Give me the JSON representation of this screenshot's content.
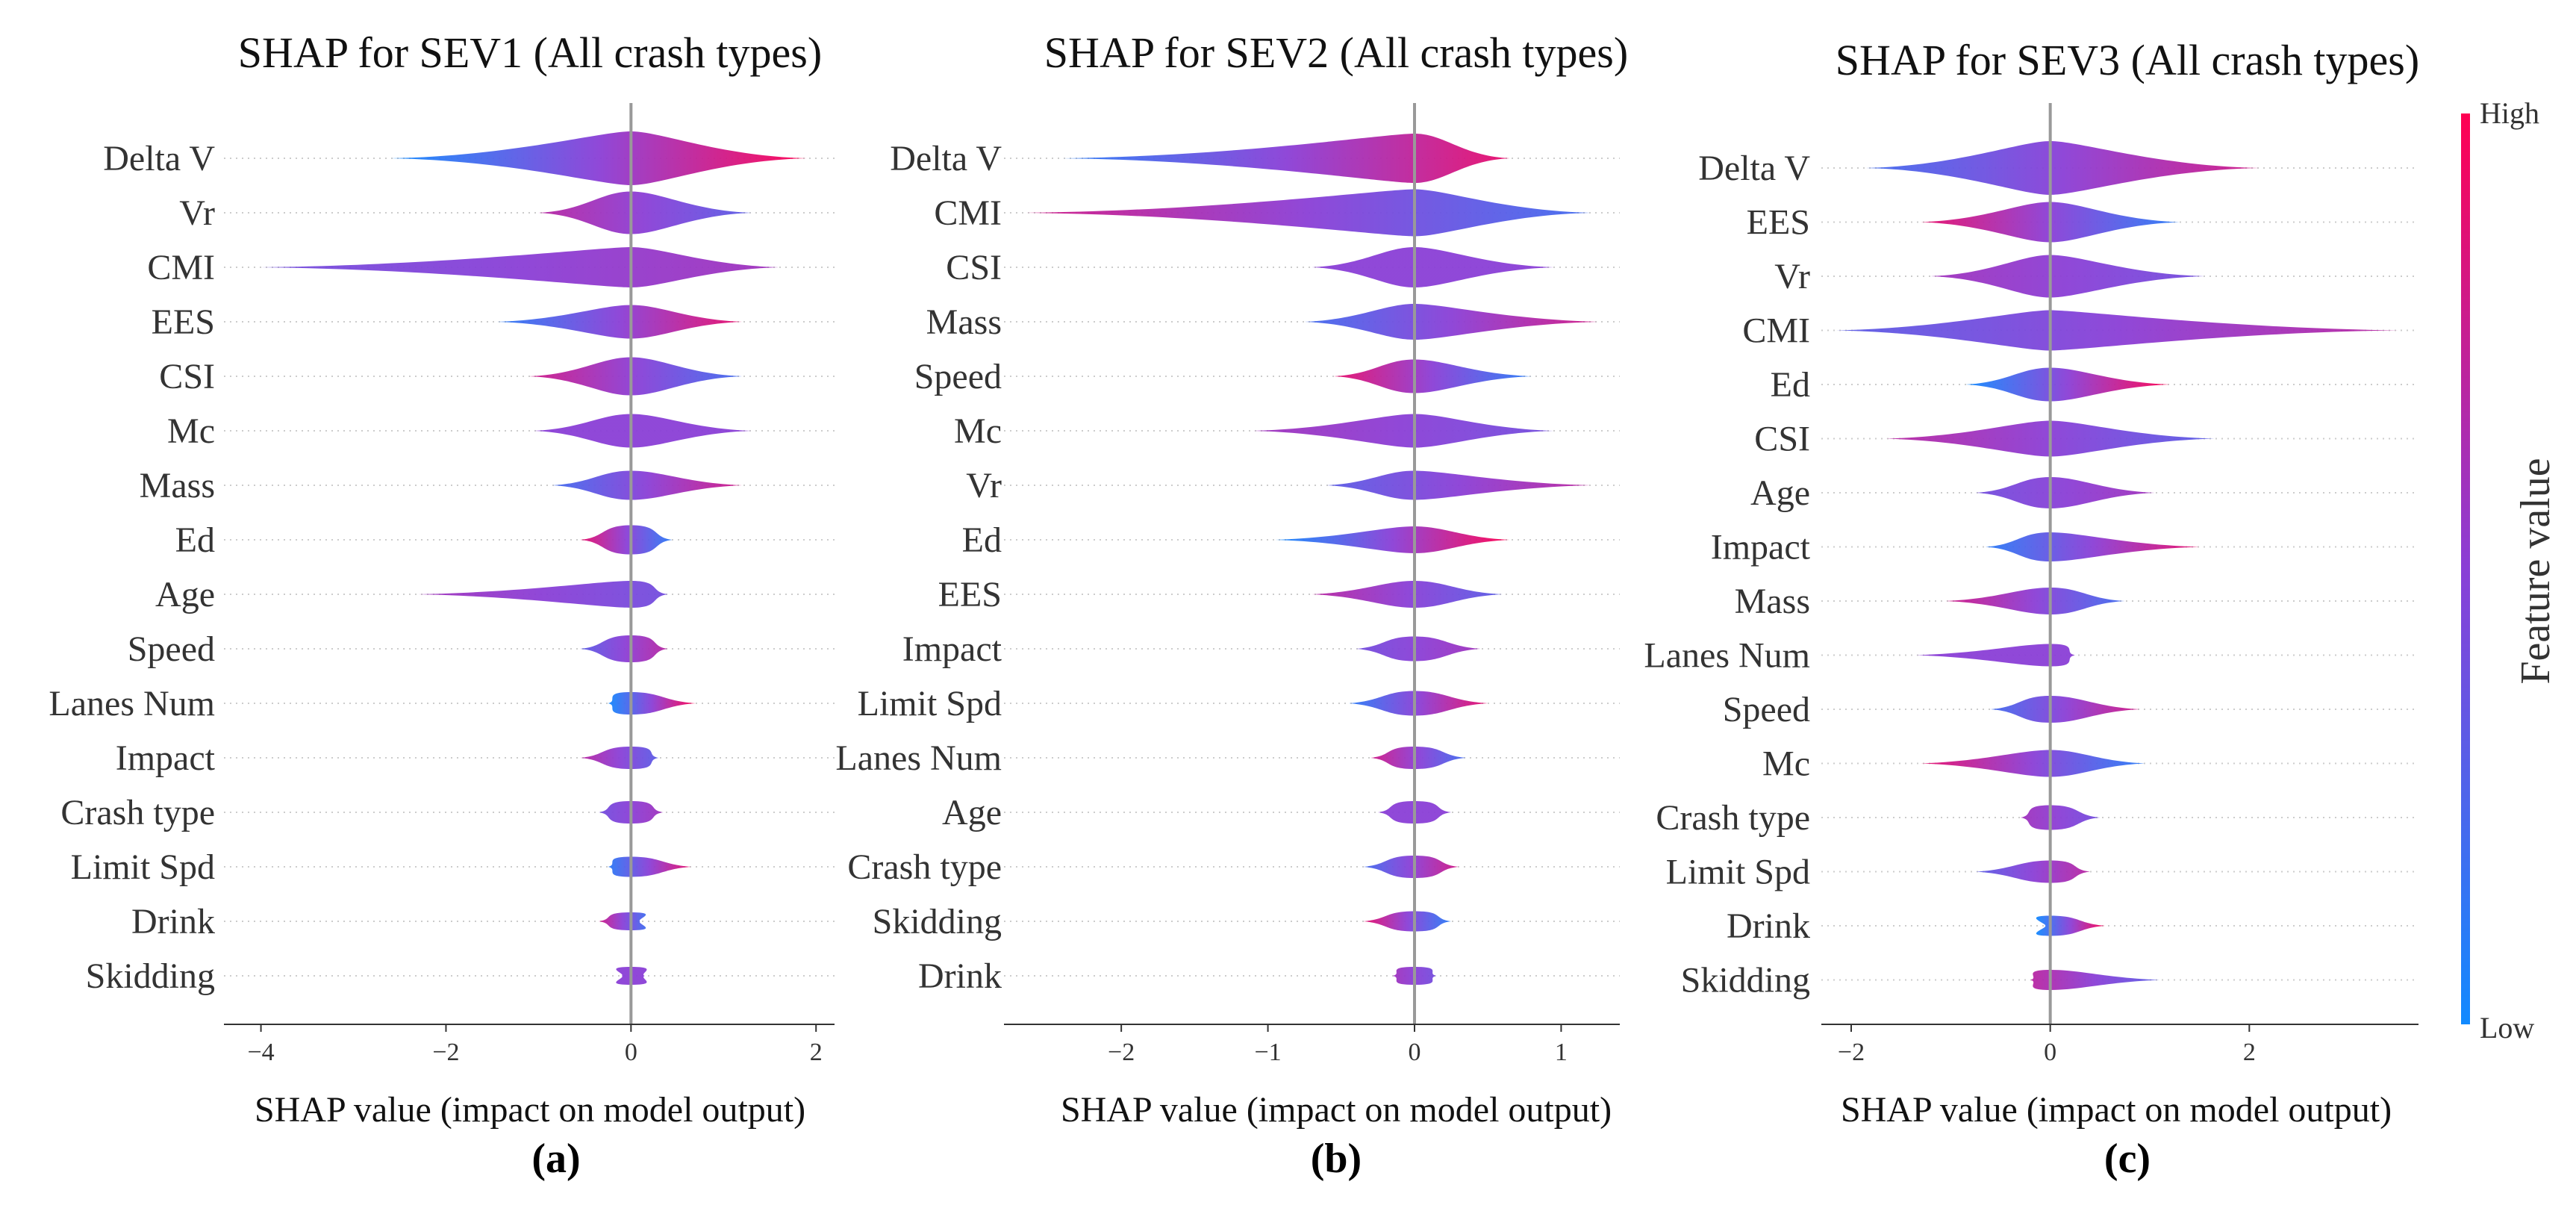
{
  "colorbar": {
    "label": "Feature value",
    "high": "High",
    "low": "Low",
    "high_color": "#ff0052",
    "mid_color": "#8a3fd6",
    "low_color": "#118aff"
  },
  "chart_data": [
    {
      "type": "scatter",
      "panel_label": "(a)",
      "title": "SHAP for SEV1 (All crash types)",
      "xlabel": "SHAP value (impact on model output)",
      "xlim": [
        -4.4,
        2.2
      ],
      "xticks": [
        -4,
        -2,
        0,
        2
      ],
      "features": [
        {
          "name": "Delta V",
          "min": -2.6,
          "max": 1.9,
          "density": 1.0
        },
        {
          "name": "Vr",
          "min": -1.0,
          "max": 1.3,
          "density": 0.75
        },
        {
          "name": "CMI",
          "min": -4.0,
          "max": 1.6,
          "density": 0.7
        },
        {
          "name": "EES",
          "min": -1.45,
          "max": 1.2,
          "density": 0.55
        },
        {
          "name": "CSI",
          "min": -1.1,
          "max": 1.2,
          "density": 0.65
        },
        {
          "name": "Mc",
          "min": -1.05,
          "max": 1.3,
          "density": 0.55
        },
        {
          "name": "Mass",
          "min": -0.85,
          "max": 1.2,
          "density": 0.45
        },
        {
          "name": "Ed",
          "min": -0.55,
          "max": 0.45,
          "density": 0.45
        },
        {
          "name": "Age",
          "min": -2.3,
          "max": 0.4,
          "density": 0.4
        },
        {
          "name": "Speed",
          "min": -0.55,
          "max": 0.4,
          "density": 0.4
        },
        {
          "name": "Lanes Num",
          "min": -0.25,
          "max": 0.7,
          "density": 0.3
        },
        {
          "name": "Impact",
          "min": -0.55,
          "max": 0.3,
          "density": 0.3
        },
        {
          "name": "Crash type",
          "min": -0.35,
          "max": 0.35,
          "density": 0.3
        },
        {
          "name": "Limit Spd",
          "min": -0.25,
          "max": 0.65,
          "density": 0.25
        },
        {
          "name": "Drink",
          "min": -0.35,
          "max": 0.1,
          "density": 0.2
        },
        {
          "name": "Skidding",
          "min": -0.1,
          "max": 0.15,
          "density": 0.2
        }
      ]
    },
    {
      "type": "scatter",
      "panel_label": "(b)",
      "title": "SHAP for SEV2 (All crash types)",
      "xlabel": "SHAP value (impact on model output)",
      "xlim": [
        -2.8,
        1.4
      ],
      "xticks": [
        -2,
        -1,
        0,
        1
      ],
      "features": [
        {
          "name": "Delta V",
          "min": -2.4,
          "max": 0.65,
          "density": 0.9
        },
        {
          "name": "CMI",
          "min": -2.65,
          "max": 1.2,
          "density": 0.85
        },
        {
          "name": "CSI",
          "min": -0.7,
          "max": 0.95,
          "density": 0.7
        },
        {
          "name": "Mass",
          "min": -0.75,
          "max": 1.25,
          "density": 0.6
        },
        {
          "name": "Speed",
          "min": -0.55,
          "max": 0.8,
          "density": 0.55
        },
        {
          "name": "Mc",
          "min": -1.1,
          "max": 0.95,
          "density": 0.55
        },
        {
          "name": "Vr",
          "min": -0.6,
          "max": 1.2,
          "density": 0.45
        },
        {
          "name": "Ed",
          "min": -0.95,
          "max": 0.65,
          "density": 0.4
        },
        {
          "name": "EES",
          "min": -0.7,
          "max": 0.6,
          "density": 0.4
        },
        {
          "name": "Impact",
          "min": -0.4,
          "max": 0.45,
          "density": 0.35
        },
        {
          "name": "Limit Spd",
          "min": -0.45,
          "max": 0.5,
          "density": 0.35
        },
        {
          "name": "Lanes Num",
          "min": -0.3,
          "max": 0.35,
          "density": 0.3
        },
        {
          "name": "Age",
          "min": -0.25,
          "max": 0.25,
          "density": 0.3
        },
        {
          "name": "Crash type",
          "min": -0.35,
          "max": 0.3,
          "density": 0.3
        },
        {
          "name": "Skidding",
          "min": -0.35,
          "max": 0.25,
          "density": 0.25
        },
        {
          "name": "Drink",
          "min": -0.15,
          "max": 0.15,
          "density": 0.2
        }
      ]
    },
    {
      "type": "scatter",
      "panel_label": "(c)",
      "title": "SHAP for SEV3 (All crash types)",
      "xlabel": "SHAP value (impact on model output)",
      "xlim": [
        -2.3,
        3.7
      ],
      "xticks": [
        -2,
        0,
        2
      ],
      "features": [
        {
          "name": "Delta V",
          "min": -1.85,
          "max": 2.1,
          "density": 1.0
        },
        {
          "name": "EES",
          "min": -1.3,
          "max": 1.3,
          "density": 0.7
        },
        {
          "name": "Vr",
          "min": -1.2,
          "max": 1.55,
          "density": 0.75
        },
        {
          "name": "CMI",
          "min": -2.15,
          "max": 3.5,
          "density": 0.7
        },
        {
          "name": "Ed",
          "min": -0.85,
          "max": 1.2,
          "density": 0.55
        },
        {
          "name": "CSI",
          "min": -1.65,
          "max": 1.65,
          "density": 0.6
        },
        {
          "name": "Age",
          "min": -0.75,
          "max": 1.05,
          "density": 0.5
        },
        {
          "name": "Impact",
          "min": -0.65,
          "max": 1.5,
          "density": 0.45
        },
        {
          "name": "Mass",
          "min": -1.05,
          "max": 0.75,
          "density": 0.4
        },
        {
          "name": "Lanes Num",
          "min": -1.35,
          "max": 0.25,
          "density": 0.3
        },
        {
          "name": "Speed",
          "min": -0.6,
          "max": 0.9,
          "density": 0.4
        },
        {
          "name": "Mc",
          "min": -1.3,
          "max": 0.95,
          "density": 0.4
        },
        {
          "name": "Crash type",
          "min": -0.3,
          "max": 0.5,
          "density": 0.35
        },
        {
          "name": "Limit Spd",
          "min": -0.75,
          "max": 0.4,
          "density": 0.3
        },
        {
          "name": "Drink",
          "min": -0.05,
          "max": 0.55,
          "density": 0.25
        },
        {
          "name": "Skidding",
          "min": -0.2,
          "max": 1.1,
          "density": 0.25
        }
      ]
    }
  ]
}
